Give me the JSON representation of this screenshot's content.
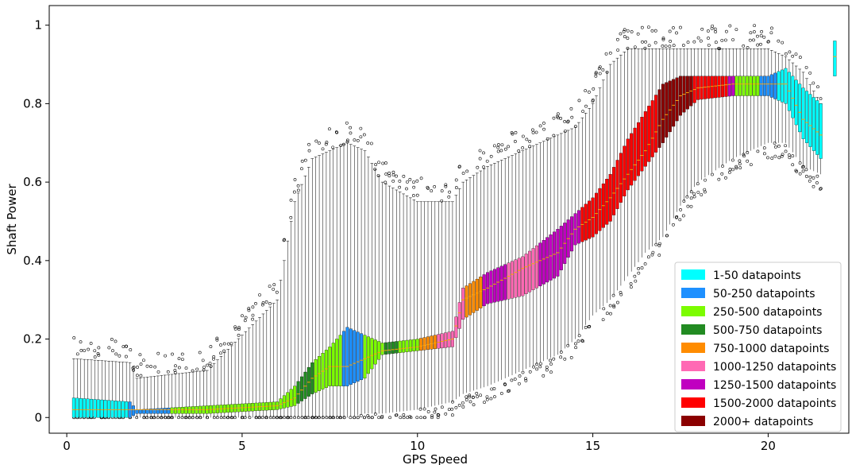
{
  "chart_data": {
    "type": "box",
    "title": "",
    "xlabel": "GPS Speed",
    "ylabel": "Shaft Power",
    "xlim": [
      -0.5,
      22.3
    ],
    "ylim": [
      -0.04,
      1.05
    ],
    "xticks": [
      0,
      5,
      10,
      15,
      20
    ],
    "yticks": [
      0,
      0.2,
      0.4,
      0.6,
      0.8,
      1
    ],
    "ytick_labels": [
      "0",
      "0.2",
      "0.4",
      "0.6",
      "0.8",
      "1"
    ],
    "legend_position": "lower right",
    "legend": [
      {
        "label": "1-50 datapoints",
        "color": "#00ffff"
      },
      {
        "label": "50-250 datapoints",
        "color": "#1e90ff"
      },
      {
        "label": "250-500 datapoints",
        "color": "#7cfc00"
      },
      {
        "label": "500-750 datapoints",
        "color": "#228b22"
      },
      {
        "label": "750-1000 datapoints",
        "color": "#ff8c00"
      },
      {
        "label": "1000-1250 datapoints",
        "color": "#ff69b4"
      },
      {
        "label": "1250-1500 datapoints",
        "color": "#c000c0"
      },
      {
        "label": "1500-2000 datapoints",
        "color": "#ff0000"
      },
      {
        "label": "2000+ datapoints",
        "color": "#8b0000"
      }
    ],
    "median_color": "#ffa500",
    "profile": {
      "speed": [
        0.2,
        1.8,
        2.0,
        4.0,
        6.0,
        6.5,
        7.0,
        7.5,
        8.0,
        8.5,
        9.0,
        10.0,
        11.0,
        11.3,
        12.0,
        13.0,
        14.0,
        14.5,
        15.0,
        15.5,
        16.0,
        16.5,
        17.0,
        17.5,
        18.0,
        19.0,
        20.0,
        20.5,
        21.0,
        21.5
      ],
      "q1": [
        0.0,
        0.0,
        0.01,
        0.01,
        0.02,
        0.03,
        0.06,
        0.08,
        0.08,
        0.1,
        0.16,
        0.17,
        0.18,
        0.25,
        0.29,
        0.31,
        0.36,
        0.44,
        0.46,
        0.5,
        0.58,
        0.64,
        0.7,
        0.77,
        0.81,
        0.82,
        0.82,
        0.8,
        0.71,
        0.66
      ],
      "median": [
        0.02,
        0.02,
        0.02,
        0.02,
        0.03,
        0.05,
        0.1,
        0.13,
        0.13,
        0.15,
        0.17,
        0.18,
        0.2,
        0.3,
        0.33,
        0.38,
        0.42,
        0.48,
        0.51,
        0.56,
        0.62,
        0.68,
        0.76,
        0.82,
        0.84,
        0.85,
        0.85,
        0.85,
        0.76,
        0.72
      ],
      "q3": [
        0.05,
        0.04,
        0.02,
        0.03,
        0.04,
        0.08,
        0.14,
        0.18,
        0.23,
        0.21,
        0.19,
        0.2,
        0.22,
        0.33,
        0.37,
        0.41,
        0.48,
        0.52,
        0.56,
        0.62,
        0.71,
        0.78,
        0.85,
        0.87,
        0.87,
        0.87,
        0.87,
        0.89,
        0.84,
        0.8
      ],
      "whisker_low": [
        0.0,
        0.0,
        0.0,
        0.0,
        0.0,
        0.0,
        0.0,
        0.0,
        0.0,
        0.01,
        0.01,
        0.02,
        0.04,
        0.06,
        0.08,
        0.12,
        0.16,
        0.2,
        0.26,
        0.3,
        0.36,
        0.42,
        0.46,
        0.54,
        0.6,
        0.66,
        0.7,
        0.7,
        0.64,
        0.62
      ],
      "whisker_high": [
        0.15,
        0.14,
        0.1,
        0.12,
        0.3,
        0.55,
        0.66,
        0.68,
        0.7,
        0.68,
        0.6,
        0.55,
        0.55,
        0.6,
        0.64,
        0.68,
        0.72,
        0.74,
        0.8,
        0.9,
        0.94,
        0.94,
        0.94,
        0.94,
        0.94,
        0.94,
        0.94,
        0.92,
        0.88,
        0.8
      ]
    },
    "count_bands": [
      {
        "from": 0.2,
        "to": 1.8,
        "class": 0
      },
      {
        "from": 1.8,
        "to": 3.0,
        "class": 1
      },
      {
        "from": 3.0,
        "to": 6.5,
        "class": 2
      },
      {
        "from": 6.5,
        "to": 7.0,
        "class": 3
      },
      {
        "from": 7.0,
        "to": 7.8,
        "class": 2
      },
      {
        "from": 7.8,
        "to": 8.4,
        "class": 1
      },
      {
        "from": 8.4,
        "to": 9.0,
        "class": 2
      },
      {
        "from": 9.0,
        "to": 9.4,
        "class": 3
      },
      {
        "from": 9.4,
        "to": 10.0,
        "class": 2
      },
      {
        "from": 10.0,
        "to": 10.5,
        "class": 4
      },
      {
        "from": 10.5,
        "to": 11.3,
        "class": 5
      },
      {
        "from": 11.3,
        "to": 11.8,
        "class": 4
      },
      {
        "from": 11.8,
        "to": 12.5,
        "class": 6
      },
      {
        "from": 12.5,
        "to": 13.4,
        "class": 5
      },
      {
        "from": 13.4,
        "to": 14.0,
        "class": 6
      },
      {
        "from": 14.0,
        "to": 14.6,
        "class": 6
      },
      {
        "from": 14.6,
        "to": 15.3,
        "class": 7
      },
      {
        "from": 15.3,
        "to": 16.8,
        "class": 7
      },
      {
        "from": 16.8,
        "to": 17.8,
        "class": 8
      },
      {
        "from": 17.8,
        "to": 18.8,
        "class": 7
      },
      {
        "from": 18.8,
        "to": 19.1,
        "class": 6
      },
      {
        "from": 19.1,
        "to": 19.8,
        "class": 2
      },
      {
        "from": 19.8,
        "to": 20.3,
        "class": 1
      },
      {
        "from": 20.3,
        "to": 22.0,
        "class": 0
      }
    ],
    "isolated_boxes": [
      {
        "x": 21.9,
        "q1": 0.87,
        "median": 0.92,
        "q3": 0.96,
        "class": 0
      }
    ]
  }
}
